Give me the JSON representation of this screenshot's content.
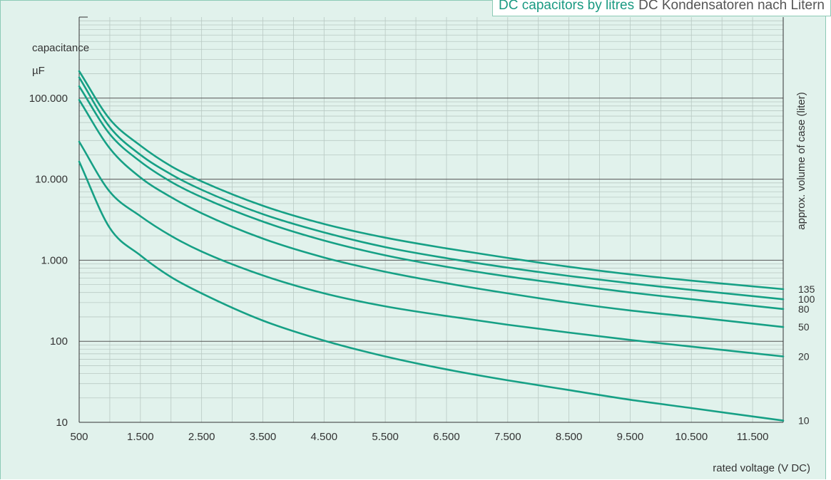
{
  "header": {
    "title_en": "DC capacitors by litres",
    "title_de": "DC Kondensatoren nach Litern"
  },
  "colors": {
    "background": "#e1f2ec",
    "line": "#16a085",
    "major_grid": "#555555",
    "minor_grid": "#b9c9c3"
  },
  "chart_data": {
    "type": "line",
    "xlabel": "rated voltage (V DC)",
    "ylabel": "capacitance",
    "yunit": "µF",
    "right_label": "approx. volume of case (liter)",
    "y_scale": "log",
    "ylim": [
      10,
      1000000
    ],
    "xlim": [
      500,
      12000
    ],
    "x_ticks": [
      500,
      1500,
      2500,
      3500,
      4500,
      5500,
      6500,
      7500,
      8500,
      9500,
      10500,
      11500
    ],
    "x_tick_labels": [
      "500",
      "1.500",
      "2.500",
      "3.500",
      "4.500",
      "5.500",
      "6.500",
      "7.500",
      "8.500",
      "9.500",
      "10.500",
      "11.500"
    ],
    "y_ticks": [
      10,
      100,
      1000,
      10000,
      100000
    ],
    "y_tick_labels": [
      "10",
      "100",
      "1.000",
      "10.000",
      "100.000"
    ],
    "grid": true,
    "series": [
      {
        "name": "135",
        "x": [
          500,
          1000,
          1500,
          2000,
          2500,
          3500,
          4500,
          5500,
          6500,
          7500,
          8500,
          9500,
          10500,
          12000
        ],
        "y": [
          215000,
          55000,
          26000,
          14500,
          9400,
          4700,
          2800,
          1900,
          1400,
          1070,
          830,
          670,
          560,
          440
        ]
      },
      {
        "name": "100",
        "x": [
          500,
          1000,
          1500,
          2000,
          2500,
          3500,
          4500,
          5500,
          6500,
          7500,
          8500,
          9500,
          10500,
          12000
        ],
        "y": [
          180000,
          44000,
          20000,
          11500,
          7400,
          3700,
          2200,
          1450,
          1060,
          810,
          640,
          520,
          430,
          330
        ]
      },
      {
        "name": "80",
        "x": [
          500,
          1000,
          1500,
          2000,
          2500,
          3500,
          4500,
          5500,
          6500,
          7500,
          8500,
          9500,
          10500,
          12000
        ],
        "y": [
          140000,
          36000,
          16500,
          9300,
          6000,
          3000,
          1750,
          1150,
          830,
          630,
          500,
          400,
          330,
          250
        ]
      },
      {
        "name": "50",
        "x": [
          500,
          1000,
          1500,
          2000,
          2500,
          3500,
          4500,
          5500,
          6500,
          7500,
          8500,
          9500,
          10500,
          12000
        ],
        "y": [
          95000,
          24000,
          10500,
          6000,
          3800,
          1850,
          1080,
          720,
          520,
          390,
          300,
          240,
          200,
          150
        ]
      },
      {
        "name": "20",
        "x": [
          500,
          1000,
          1500,
          2000,
          2500,
          3500,
          4500,
          5500,
          6500,
          7500,
          8500,
          9500,
          10500,
          12000
        ],
        "y": [
          29000,
          7000,
          3500,
          2000,
          1280,
          650,
          390,
          270,
          205,
          160,
          128,
          104,
          86,
          65
        ]
      },
      {
        "name": "10",
        "x": [
          500,
          1000,
          1500,
          2000,
          2500,
          3500,
          4500,
          5500,
          6500,
          7500,
          8500,
          9500,
          10500,
          12000
        ],
        "y": [
          16500,
          2500,
          1150,
          620,
          390,
          180,
          102,
          65,
          45,
          33,
          25,
          19,
          15,
          10.5
        ]
      }
    ]
  }
}
